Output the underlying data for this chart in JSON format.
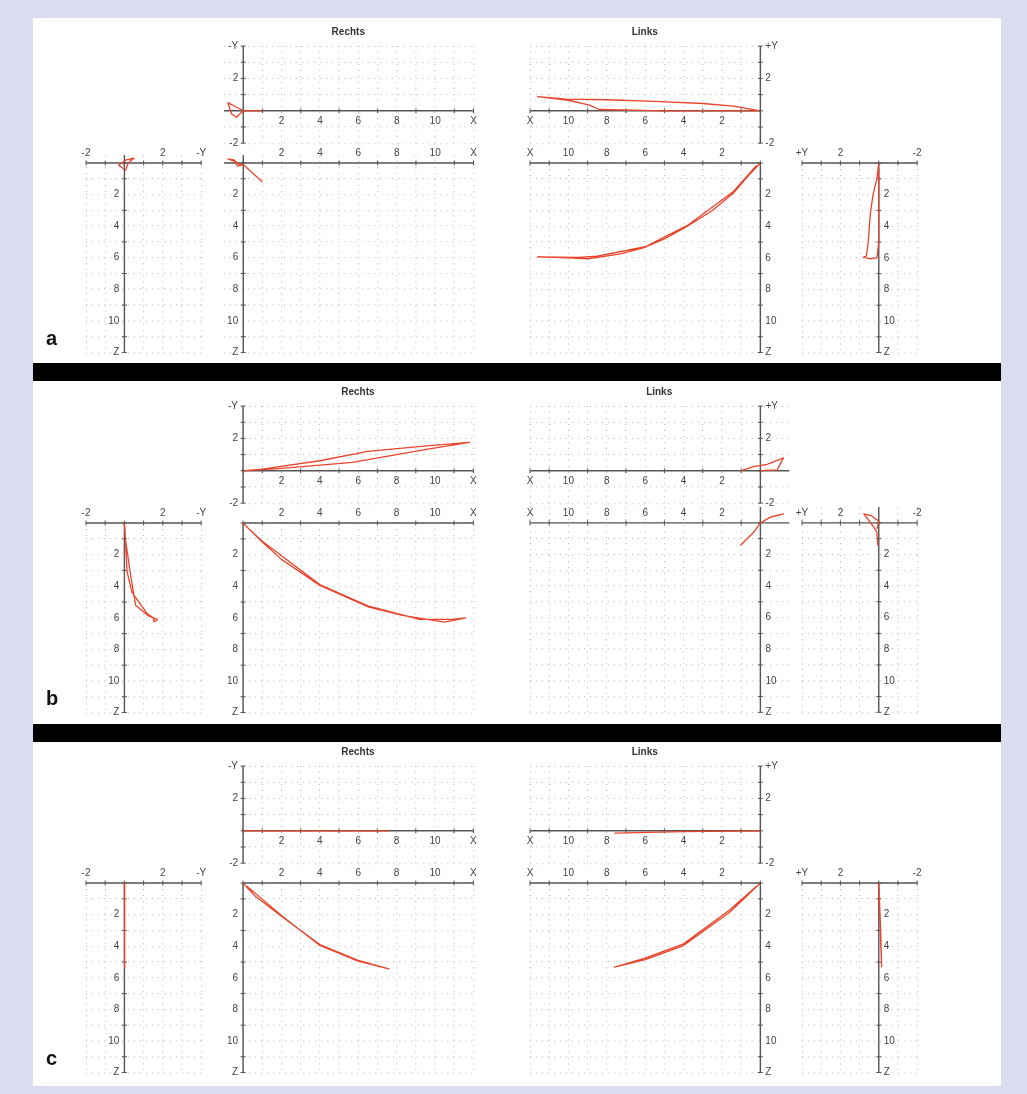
{
  "chart_data": [
    {
      "type": "line",
      "annotations": [
        "a"
      ],
      "grid": true,
      "marker": "none",
      "xlim": [
        -2,
        4
      ],
      "ylim": [
        12,
        -0.5
      ],
      "xticks": [
        -2,
        {
          "value": -1,
          "label": null
        },
        {
          "value": 0,
          "label": null
        },
        {
          "value": 1,
          "label": null
        },
        2,
        {
          "value": 3,
          "label": null
        },
        {
          "value": 4,
          "label": "-Y"
        }
      ],
      "yticks": [
        {
          "value": 0,
          "label": null
        },
        {
          "value": 1,
          "label": null
        },
        2,
        {
          "value": 3,
          "label": null
        },
        4,
        {
          "value": 5,
          "label": null
        },
        6,
        {
          "value": 7,
          "label": null
        },
        8,
        {
          "value": 9,
          "label": null
        },
        10,
        {
          "value": 11,
          "label": null
        },
        {
          "value": 12,
          "label": "Z"
        }
      ],
      "series": [
        {
          "color": "#e8452c",
          "x": [
            0,
            -0.3,
            0.1,
            0.5,
            0.2,
            0.05
          ],
          "values": [
            0.4,
            0.15,
            -0.2,
            -0.3,
            0,
            0.5
          ]
        }
      ]
    },
    {
      "type": "line",
      "title": "Rechts",
      "grid": true,
      "marker": "none",
      "xlim": [
        -1,
        12
      ],
      "ylim": [
        -2,
        4
      ],
      "xticks": [
        {
          "value": 0,
          "label": null
        },
        {
          "value": 1,
          "label": null
        },
        2,
        {
          "value": 3,
          "label": null
        },
        4,
        {
          "value": 5,
          "label": null
        },
        6,
        {
          "value": 7,
          "label": null
        },
        8,
        {
          "value": 9,
          "label": null
        },
        10,
        {
          "value": 11,
          "label": null
        },
        {
          "value": 12,
          "label": "X"
        }
      ],
      "yticks": [
        -2,
        {
          "value": -1,
          "label": null
        },
        {
          "value": 0,
          "label": null
        },
        {
          "value": 1,
          "label": null
        },
        2,
        {
          "value": 3,
          "label": null
        },
        {
          "value": 4,
          "label": "-Y"
        }
      ],
      "series": [
        {
          "color": "#e8452c",
          "x": [
            1,
            0,
            -0.4,
            -0.8,
            -0.6,
            -0.35,
            -0.1,
            0
          ],
          "values": [
            0,
            0,
            0.25,
            0.5,
            -0.2,
            -0.4,
            -0.1,
            0
          ]
        }
      ]
    },
    {
      "type": "line",
      "grid": true,
      "marker": "none",
      "xlim": [
        -1,
        12
      ],
      "ylim": [
        12,
        -0.5
      ],
      "xticks": [
        {
          "value": 0,
          "label": null
        },
        {
          "value": 1,
          "label": null
        },
        2,
        {
          "value": 3,
          "label": null
        },
        4,
        {
          "value": 5,
          "label": null
        },
        6,
        {
          "value": 7,
          "label": null
        },
        8,
        {
          "value": 9,
          "label": null
        },
        10,
        {
          "value": 11,
          "label": null
        },
        {
          "value": 12,
          "label": "X"
        }
      ],
      "yticks": [
        {
          "value": 0,
          "label": null
        },
        {
          "value": 1,
          "label": null
        },
        2,
        {
          "value": 3,
          "label": null
        },
        4,
        {
          "value": 5,
          "label": null
        },
        6,
        {
          "value": 7,
          "label": null
        },
        8,
        {
          "value": 9,
          "label": null
        },
        10,
        {
          "value": 11,
          "label": null
        },
        {
          "value": 12,
          "label": "Z"
        }
      ],
      "series": [
        {
          "color": "#e8452c",
          "x": [
            1,
            0,
            -0.3,
            -0.45,
            -0.8,
            -0.5,
            -0.2,
            0
          ],
          "values": [
            1.2,
            0.1,
            0.2,
            -0.1,
            -0.25,
            -0.2,
            0.1,
            0.1
          ]
        }
      ]
    },
    {
      "type": "line",
      "title": "Links",
      "grid": true,
      "marker": "none",
      "xlim": [
        12,
        0
      ],
      "ylim": [
        -2,
        4
      ],
      "xticks": [
        {
          "value": 0,
          "label": null
        },
        {
          "value": 1,
          "label": null
        },
        2,
        {
          "value": 3,
          "label": null
        },
        4,
        {
          "value": 5,
          "label": null
        },
        6,
        {
          "value": 7,
          "label": null
        },
        8,
        {
          "value": 9,
          "label": null
        },
        10,
        {
          "value": 11,
          "label": null
        },
        {
          "value": 12,
          "label": "X"
        }
      ],
      "yticks": [
        -2,
        {
          "value": -1,
          "label": null
        },
        {
          "value": 0,
          "label": null
        },
        {
          "value": 1,
          "label": null
        },
        2,
        {
          "value": 3,
          "label": null
        },
        {
          "value": 4,
          "label": "+Y"
        }
      ],
      "series": [
        {
          "color": "#e8452c",
          "x": [
            0,
            1.4,
            3,
            5.2,
            8,
            10.1,
            11.6,
            10,
            8.9,
            8.4,
            5,
            0.2
          ],
          "values": [
            0,
            0.29,
            0.45,
            0.56,
            0.68,
            0.72,
            0.87,
            0.65,
            0.35,
            0.08,
            0,
            0
          ]
        }
      ]
    },
    {
      "type": "line",
      "grid": true,
      "marker": "none",
      "xlim": [
        12,
        0
      ],
      "ylim": [
        12,
        0
      ],
      "xticks": [
        {
          "value": 0,
          "label": null
        },
        {
          "value": 1,
          "label": null
        },
        2,
        {
          "value": 3,
          "label": null
        },
        4,
        {
          "value": 5,
          "label": null
        },
        6,
        {
          "value": 7,
          "label": null
        },
        8,
        {
          "value": 9,
          "label": null
        },
        10,
        {
          "value": 11,
          "label": null
        },
        {
          "value": 12,
          "label": "X"
        }
      ],
      "yticks": [
        {
          "value": 0,
          "label": null
        },
        {
          "value": 1,
          "label": null
        },
        2,
        {
          "value": 3,
          "label": null
        },
        4,
        {
          "value": 5,
          "label": null
        },
        6,
        {
          "value": 7,
          "label": null
        },
        8,
        {
          "value": 9,
          "label": null
        },
        10,
        {
          "value": 11,
          "label": null
        },
        {
          "value": 12,
          "label": "Z"
        }
      ],
      "series": [
        {
          "color": "#e8452c",
          "x": [
            0,
            0.7,
            1.4,
            2.5,
            3.8,
            5,
            6.1,
            7.3,
            8.3,
            9,
            10,
            11.6,
            9.5,
            8.5,
            6,
            3.8,
            1.4,
            0.2
          ],
          "values": [
            0,
            0.9,
            1.9,
            3,
            4,
            4.8,
            5.37,
            5.75,
            5.94,
            6.06,
            6,
            5.94,
            5.98,
            5.9,
            5.3,
            3.95,
            1.8,
            0.15
          ]
        }
      ]
    },
    {
      "type": "line",
      "grid": true,
      "marker": "none",
      "xlim": [
        4,
        -2
      ],
      "ylim": [
        12,
        0
      ],
      "xticks": [
        -2,
        {
          "value": -1,
          "label": null
        },
        {
          "value": 0,
          "label": null
        },
        {
          "value": 1,
          "label": null
        },
        2,
        {
          "value": 3,
          "label": null
        },
        {
          "value": 4,
          "label": "+Y"
        }
      ],
      "yticks": [
        {
          "value": 0,
          "label": null
        },
        {
          "value": 1,
          "label": null
        },
        2,
        {
          "value": 3,
          "label": null
        },
        4,
        {
          "value": 5,
          "label": null
        },
        6,
        {
          "value": 7,
          "label": null
        },
        8,
        {
          "value": 9,
          "label": null
        },
        10,
        {
          "value": 11,
          "label": null
        },
        {
          "value": 12,
          "label": "Z"
        }
      ],
      "series": [
        {
          "color": "#e8452c",
          "x": [
            0,
            0.1,
            0.3,
            0.44,
            0.55,
            0.65,
            0.8,
            0.5,
            0.1,
            0,
            0
          ],
          "values": [
            0,
            1,
            2,
            3.2,
            5,
            5.9,
            5.95,
            6.06,
            6,
            5,
            0.3
          ]
        }
      ]
    },
    {
      "type": "line",
      "annotations": [
        "b"
      ],
      "grid": true,
      "marker": "none",
      "xlim": [
        -2,
        4
      ],
      "ylim": [
        12,
        0
      ],
      "xticks": [
        -2,
        {
          "value": -1,
          "label": null
        },
        {
          "value": 0,
          "label": null
        },
        {
          "value": 1,
          "label": null
        },
        2,
        {
          "value": 3,
          "label": null
        },
        {
          "value": 4,
          "label": "-Y"
        }
      ],
      "yticks": [
        {
          "value": 0,
          "label": null
        },
        {
          "value": 1,
          "label": null
        },
        2,
        {
          "value": 3,
          "label": null
        },
        4,
        {
          "value": 5,
          "label": null
        },
        6,
        {
          "value": 7,
          "label": null
        },
        8,
        {
          "value": 9,
          "label": null
        },
        10,
        {
          "value": 11,
          "label": null
        },
        {
          "value": 12,
          "label": "Z"
        }
      ],
      "series": [
        {
          "color": "#e8452c",
          "x": [
            0,
            0.05,
            0.3,
            0.58,
            1.28,
            1.72,
            1.55,
            1.5,
            1.2,
            0.4,
            0.14,
            0.05,
            0.02
          ],
          "values": [
            0,
            1,
            3.1,
            5.2,
            5.9,
            6.1,
            6.25,
            6,
            5.75,
            4.4,
            3.1,
            1,
            0.3
          ]
        }
      ]
    },
    {
      "type": "line",
      "title": "Rechts",
      "grid": true,
      "marker": "none",
      "xlim": [
        0,
        12
      ],
      "ylim": [
        -2,
        4
      ],
      "xticks": [
        {
          "value": 0,
          "label": null
        },
        {
          "value": 1,
          "label": null
        },
        2,
        {
          "value": 3,
          "label": null
        },
        4,
        {
          "value": 5,
          "label": null
        },
        6,
        {
          "value": 7,
          "label": null
        },
        8,
        {
          "value": 9,
          "label": null
        },
        10,
        {
          "value": 11,
          "label": null
        },
        {
          "value": 12,
          "label": "X"
        }
      ],
      "yticks": [
        -2,
        {
          "value": -1,
          "label": null
        },
        {
          "value": 0,
          "label": null
        },
        {
          "value": 1,
          "label": null
        },
        2,
        {
          "value": 3,
          "label": null
        },
        {
          "value": 4,
          "label": "-Y"
        }
      ],
      "series": [
        {
          "color": "#e8452c",
          "x": [
            0,
            1,
            4,
            6.5,
            9.7,
            11.8,
            9.7,
            5.7,
            2,
            0.3
          ],
          "values": [
            0,
            0.1,
            0.62,
            1.2,
            1.55,
            1.75,
            1.35,
            0.52,
            0.15,
            0.02
          ]
        }
      ]
    },
    {
      "type": "line",
      "grid": true,
      "marker": "none",
      "xlim": [
        0,
        12
      ],
      "ylim": [
        12,
        0
      ],
      "xticks": [
        {
          "value": 0,
          "label": null
        },
        {
          "value": 1,
          "label": null
        },
        2,
        {
          "value": 3,
          "label": null
        },
        4,
        {
          "value": 5,
          "label": null
        },
        6,
        {
          "value": 7,
          "label": null
        },
        8,
        {
          "value": 9,
          "label": null
        },
        10,
        {
          "value": 11,
          "label": null
        },
        {
          "value": 12,
          "label": "X"
        }
      ],
      "yticks": [
        {
          "value": 0,
          "label": null
        },
        {
          "value": 1,
          "label": null
        },
        2,
        {
          "value": 3,
          "label": null
        },
        4,
        {
          "value": 5,
          "label": null
        },
        6,
        {
          "value": 7,
          "label": null
        },
        8,
        {
          "value": 9,
          "label": null
        },
        10,
        {
          "value": 11,
          "label": null
        },
        {
          "value": 12,
          "label": "Z"
        }
      ],
      "series": [
        {
          "color": "#e8452c",
          "x": [
            0,
            1,
            2,
            4,
            6.5,
            8.3,
            10.5,
            11.6,
            10.9,
            9.2,
            6.5,
            4,
            1,
            0.2
          ],
          "values": [
            0,
            1.2,
            2.3,
            3.95,
            5.3,
            5.85,
            6.27,
            6,
            6.1,
            6.1,
            5.25,
            3.9,
            1.15,
            0.25
          ]
        }
      ]
    },
    {
      "type": "line",
      "title": "Links",
      "grid": true,
      "marker": "none",
      "xlim": [
        12,
        -1.5
      ],
      "ylim": [
        -2,
        4
      ],
      "xticks": [
        {
          "value": 0,
          "label": null
        },
        {
          "value": 1,
          "label": null
        },
        2,
        {
          "value": 3,
          "label": null
        },
        4,
        {
          "value": 5,
          "label": null
        },
        6,
        {
          "value": 7,
          "label": null
        },
        8,
        {
          "value": 9,
          "label": null
        },
        10,
        {
          "value": 11,
          "label": null
        },
        {
          "value": 12,
          "label": "X"
        }
      ],
      "yticks": [
        -2,
        {
          "value": -1,
          "label": null
        },
        {
          "value": 0,
          "label": null
        },
        {
          "value": 1,
          "label": null
        },
        2,
        {
          "value": 3,
          "label": null
        },
        {
          "value": 4,
          "label": "+Y"
        }
      ],
      "series": [
        {
          "color": "#e8452c",
          "x": [
            1.04,
            0.35,
            -0.35,
            -1.2,
            -0.87,
            0
          ],
          "values": [
            0,
            0.25,
            0.4,
            0.8,
            0.05,
            0
          ]
        }
      ]
    },
    {
      "type": "line",
      "grid": true,
      "marker": "none",
      "xlim": [
        12,
        -1.5
      ],
      "ylim": [
        12,
        -1
      ],
      "xticks": [
        {
          "value": 0,
          "label": null
        },
        {
          "value": 1,
          "label": null
        },
        2,
        {
          "value": 3,
          "label": null
        },
        4,
        {
          "value": 5,
          "label": null
        },
        6,
        {
          "value": 7,
          "label": null
        },
        8,
        {
          "value": 9,
          "label": null
        },
        10,
        {
          "value": 11,
          "label": null
        },
        {
          "value": 12,
          "label": "X"
        }
      ],
      "yticks": [
        {
          "value": 0,
          "label": null
        },
        {
          "value": 1,
          "label": null
        },
        2,
        {
          "value": 3,
          "label": null
        },
        4,
        {
          "value": 5,
          "label": null
        },
        6,
        {
          "value": 7,
          "label": null
        },
        8,
        {
          "value": 9,
          "label": null
        },
        10,
        {
          "value": 11,
          "label": null
        },
        {
          "value": 12,
          "label": "Z"
        }
      ],
      "series": [
        {
          "color": "#e8452c",
          "x": [
            1.04,
            0.35,
            0,
            -0.5,
            -1.2,
            -0.6,
            0
          ],
          "values": [
            1.43,
            0.6,
            0,
            -0.35,
            -0.57,
            -0.4,
            0
          ]
        }
      ]
    },
    {
      "type": "line",
      "grid": true,
      "marker": "none",
      "xlim": [
        4,
        -2
      ],
      "ylim": [
        12,
        -1
      ],
      "xticks": [
        -2,
        {
          "value": -1,
          "label": null
        },
        {
          "value": 0,
          "label": null
        },
        {
          "value": 1,
          "label": null
        },
        2,
        {
          "value": 3,
          "label": null
        },
        {
          "value": 4,
          "label": "+Y"
        }
      ],
      "yticks": [
        {
          "value": 0,
          "label": null
        },
        {
          "value": 1,
          "label": null
        },
        2,
        {
          "value": 3,
          "label": null
        },
        4,
        {
          "value": 5,
          "label": null
        },
        6,
        {
          "value": 7,
          "label": null
        },
        8,
        {
          "value": 9,
          "label": null
        },
        10,
        {
          "value": 11,
          "label": null
        },
        {
          "value": 12,
          "label": "Z"
        }
      ],
      "series": [
        {
          "color": "#e8452c",
          "x": [
            0.05,
            0.1,
            0.3,
            0.78,
            0.4,
            0,
            0.1
          ],
          "values": [
            1.45,
            0.6,
            0.2,
            -0.57,
            -0.46,
            -0.1,
            0.4
          ]
        }
      ]
    },
    {
      "type": "line",
      "annotations": [
        "c"
      ],
      "grid": true,
      "marker": "none",
      "xlim": [
        -2,
        4
      ],
      "ylim": [
        12,
        0
      ],
      "xticks": [
        -2,
        {
          "value": -1,
          "label": null
        },
        {
          "value": 0,
          "label": null
        },
        {
          "value": 1,
          "label": null
        },
        2,
        {
          "value": 3,
          "label": null
        },
        {
          "value": 4,
          "label": "-Y"
        }
      ],
      "yticks": [
        {
          "value": 0,
          "label": null
        },
        {
          "value": 1,
          "label": null
        },
        2,
        {
          "value": 3,
          "label": null
        },
        4,
        {
          "value": 5,
          "label": null
        },
        6,
        {
          "value": 7,
          "label": null
        },
        8,
        {
          "value": 9,
          "label": null
        },
        10,
        {
          "value": 11,
          "label": null
        },
        {
          "value": 12,
          "label": "Z"
        }
      ],
      "series": [
        {
          "color": "#e8452c",
          "x": [
            0,
            0.02,
            0
          ],
          "values": [
            0,
            3,
            5.4
          ]
        }
      ]
    },
    {
      "type": "line",
      "title": "Rechts",
      "grid": true,
      "marker": "none",
      "xlim": [
        0,
        12
      ],
      "ylim": [
        -2,
        4
      ],
      "xticks": [
        {
          "value": 0,
          "label": null
        },
        {
          "value": 1,
          "label": null
        },
        2,
        {
          "value": 3,
          "label": null
        },
        4,
        {
          "value": 5,
          "label": null
        },
        6,
        {
          "value": 7,
          "label": null
        },
        8,
        {
          "value": 9,
          "label": null
        },
        10,
        {
          "value": 11,
          "label": null
        },
        {
          "value": 12,
          "label": "X"
        }
      ],
      "yticks": [
        -2,
        {
          "value": -1,
          "label": null
        },
        {
          "value": 0,
          "label": null
        },
        {
          "value": 1,
          "label": null
        },
        2,
        {
          "value": 3,
          "label": null
        },
        {
          "value": 4,
          "label": "-Y"
        }
      ],
      "series": [
        {
          "color": "#e8452c",
          "x": [
            0,
            7.6
          ],
          "values": [
            0,
            0
          ]
        }
      ]
    },
    {
      "type": "line",
      "grid": true,
      "marker": "none",
      "xlim": [
        0,
        12
      ],
      "ylim": [
        12,
        0
      ],
      "xticks": [
        {
          "value": 0,
          "label": null
        },
        {
          "value": 1,
          "label": null
        },
        2,
        {
          "value": 3,
          "label": null
        },
        4,
        {
          "value": 5,
          "label": null
        },
        6,
        {
          "value": 7,
          "label": null
        },
        8,
        {
          "value": 9,
          "label": null
        },
        10,
        {
          "value": 11,
          "label": null
        },
        {
          "value": 12,
          "label": "X"
        }
      ],
      "yticks": [
        {
          "value": 0,
          "label": null
        },
        {
          "value": 1,
          "label": null
        },
        2,
        {
          "value": 3,
          "label": null
        },
        4,
        {
          "value": 5,
          "label": null
        },
        6,
        {
          "value": 7,
          "label": null
        },
        8,
        {
          "value": 9,
          "label": null
        },
        10,
        {
          "value": 11,
          "label": null
        },
        {
          "value": 12,
          "label": "Z"
        }
      ],
      "series": [
        {
          "color": "#e8452c",
          "x": [
            0,
            0.64,
            2,
            4,
            6,
            7.6,
            6,
            4,
            2,
            0.2
          ],
          "values": [
            0,
            0.84,
            2.1,
            3.9,
            4.9,
            5.43,
            4.95,
            3.95,
            2.05,
            0.2
          ]
        }
      ]
    },
    {
      "type": "line",
      "title": "Links",
      "grid": true,
      "marker": "none",
      "xlim": [
        12,
        0
      ],
      "ylim": [
        -2,
        4
      ],
      "xticks": [
        {
          "value": 0,
          "label": null
        },
        {
          "value": 1,
          "label": null
        },
        2,
        {
          "value": 3,
          "label": null
        },
        4,
        {
          "value": 5,
          "label": null
        },
        6,
        {
          "value": 7,
          "label": null
        },
        8,
        {
          "value": 9,
          "label": null
        },
        10,
        {
          "value": 11,
          "label": null
        },
        {
          "value": 12,
          "label": "X"
        }
      ],
      "yticks": [
        -2,
        {
          "value": -1,
          "label": null
        },
        {
          "value": 0,
          "label": null
        },
        {
          "value": 1,
          "label": null
        },
        2,
        {
          "value": 3,
          "label": null
        },
        {
          "value": 4,
          "label": "+Y"
        }
      ],
      "series": [
        {
          "color": "#e8452c",
          "x": [
            0,
            4,
            7.6
          ],
          "values": [
            0,
            -0.05,
            -0.15
          ]
        }
      ]
    },
    {
      "type": "line",
      "grid": true,
      "marker": "none",
      "xlim": [
        12,
        0
      ],
      "ylim": [
        12,
        0
      ],
      "xticks": [
        {
          "value": 0,
          "label": null
        },
        {
          "value": 1,
          "label": null
        },
        2,
        {
          "value": 3,
          "label": null
        },
        4,
        {
          "value": 5,
          "label": null
        },
        6,
        {
          "value": 7,
          "label": null
        },
        8,
        {
          "value": 9,
          "label": null
        },
        10,
        {
          "value": 11,
          "label": null
        },
        {
          "value": 12,
          "label": "X"
        }
      ],
      "yticks": [
        {
          "value": 0,
          "label": null
        },
        {
          "value": 1,
          "label": null
        },
        2,
        {
          "value": 3,
          "label": null
        },
        4,
        {
          "value": 5,
          "label": null
        },
        6,
        {
          "value": 7,
          "label": null
        },
        8,
        {
          "value": 9,
          "label": null
        },
        10,
        {
          "value": 11,
          "label": null
        },
        {
          "value": 12,
          "label": "Z"
        }
      ],
      "series": [
        {
          "color": "#e8452c",
          "x": [
            0,
            1.6,
            4,
            6,
            7.6,
            6,
            4,
            1.6,
            0.2
          ],
          "values": [
            0,
            1.85,
            3.96,
            4.85,
            5.33,
            4.75,
            3.85,
            1.7,
            0.2
          ]
        }
      ]
    },
    {
      "type": "line",
      "grid": true,
      "marker": "none",
      "xlim": [
        4,
        -2
      ],
      "ylim": [
        12,
        0
      ],
      "xticks": [
        -2,
        {
          "value": -1,
          "label": null
        },
        {
          "value": 0,
          "label": null
        },
        {
          "value": 1,
          "label": null
        },
        2,
        {
          "value": 3,
          "label": null
        },
        {
          "value": 4,
          "label": "+Y"
        }
      ],
      "yticks": [
        {
          "value": 0,
          "label": null
        },
        {
          "value": 1,
          "label": null
        },
        2,
        {
          "value": 3,
          "label": null
        },
        4,
        {
          "value": 5,
          "label": null
        },
        6,
        {
          "value": 7,
          "label": null
        },
        8,
        {
          "value": 9,
          "label": null
        },
        10,
        {
          "value": 11,
          "label": null
        },
        {
          "value": 12,
          "label": "Z"
        }
      ],
      "series": [
        {
          "color": "#e8452c",
          "x": [
            0,
            -0.1,
            -0.15,
            0
          ],
          "values": [
            0,
            3,
            5.3,
            0.5
          ]
        }
      ]
    }
  ]
}
